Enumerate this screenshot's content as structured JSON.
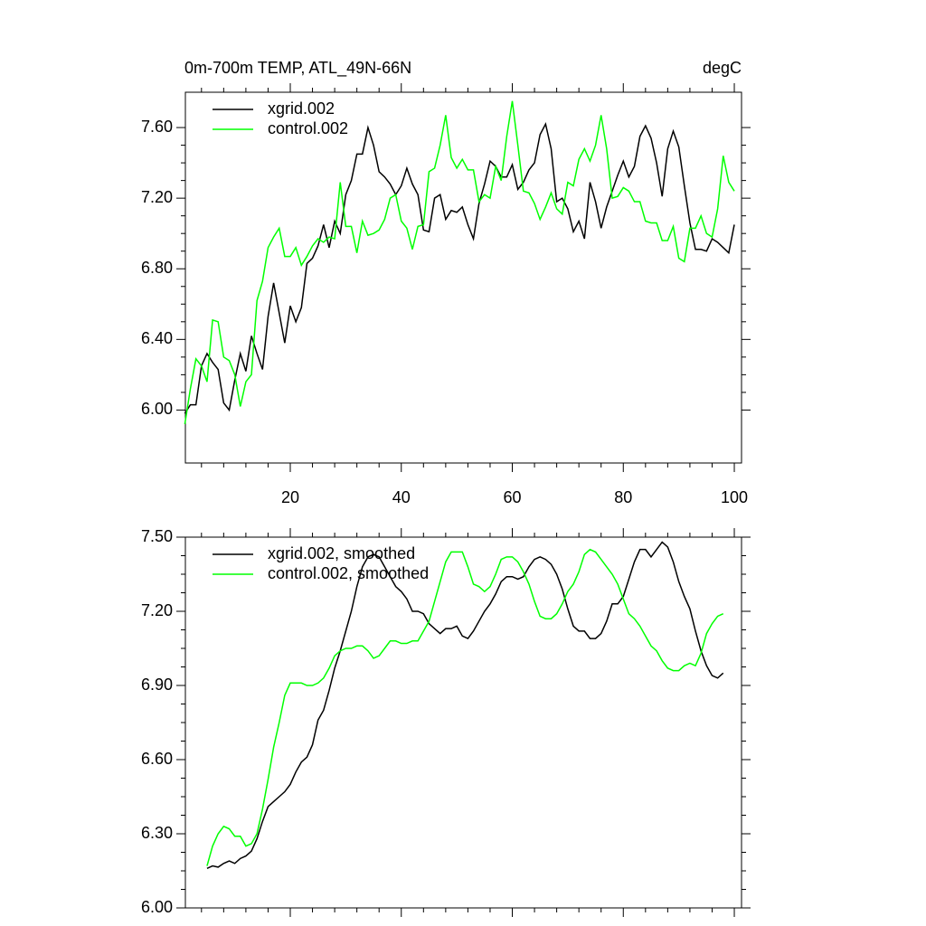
{
  "chart_data": [
    {
      "type": "line",
      "title": "0m-700m TEMP, ATL_49N-66N",
      "units_label": "degC",
      "xlim": [
        1.1,
        101.3
      ],
      "ylim": [
        5.7,
        7.8
      ],
      "xticks": [
        20,
        40,
        60,
        80,
        100
      ],
      "yticks": [
        {
          "value": 6.0,
          "label": "6.00"
        },
        {
          "value": 6.4,
          "label": "6.40"
        },
        {
          "value": 6.8,
          "label": "6.80"
        },
        {
          "value": 7.2,
          "label": "7.20"
        },
        {
          "value": 7.6,
          "label": "7.60"
        }
      ],
      "x": [
        1,
        2,
        3,
        4,
        5,
        6,
        7,
        8,
        9,
        10,
        11,
        12,
        13,
        14,
        15,
        16,
        17,
        18,
        19,
        20,
        21,
        22,
        23,
        24,
        25,
        26,
        27,
        28,
        29,
        30,
        31,
        32,
        33,
        34,
        35,
        36,
        37,
        38,
        39,
        40,
        41,
        42,
        43,
        44,
        45,
        46,
        47,
        48,
        49,
        50,
        51,
        52,
        53,
        54,
        55,
        56,
        57,
        58,
        59,
        60,
        61,
        62,
        63,
        64,
        65,
        66,
        67,
        68,
        69,
        70,
        71,
        72,
        73,
        74,
        75,
        76,
        77,
        78,
        79,
        80,
        81,
        82,
        83,
        84,
        85,
        86,
        87,
        88,
        89,
        90,
        91,
        92,
        93,
        94,
        95,
        96,
        97,
        98,
        99,
        100
      ],
      "series": [
        {
          "name": "xgrid.002",
          "color": "#000000",
          "values": [
            5.98,
            6.03,
            6.03,
            6.25,
            6.32,
            6.27,
            6.23,
            6.04,
            6.0,
            6.17,
            6.32,
            6.22,
            6.42,
            6.32,
            6.23,
            6.53,
            6.72,
            6.55,
            6.38,
            6.59,
            6.5,
            6.58,
            6.83,
            6.86,
            6.93,
            7.05,
            6.92,
            7.07,
            7.0,
            7.22,
            7.3,
            7.45,
            7.45,
            7.6,
            7.5,
            7.35,
            7.32,
            7.28,
            7.22,
            7.27,
            7.37,
            7.28,
            7.22,
            7.02,
            7.01,
            7.2,
            7.22,
            7.08,
            7.13,
            7.12,
            7.15,
            7.05,
            6.97,
            7.17,
            7.28,
            7.41,
            7.38,
            7.32,
            7.32,
            7.39,
            7.25,
            7.29,
            7.36,
            7.4,
            7.56,
            7.62,
            7.48,
            7.18,
            7.2,
            7.14,
            7.01,
            7.07,
            6.97,
            7.29,
            7.18,
            7.03,
            7.15,
            7.24,
            7.33,
            7.41,
            7.32,
            7.38,
            7.55,
            7.61,
            7.54,
            7.4,
            7.21,
            7.48,
            7.58,
            7.49,
            7.27,
            7.06,
            6.91,
            6.91,
            6.9,
            6.97,
            6.95,
            6.92,
            6.89,
            7.05
          ]
        },
        {
          "name": "control.002",
          "color": "#00ff00",
          "values": [
            5.92,
            6.12,
            6.29,
            6.25,
            6.16,
            6.51,
            6.5,
            6.3,
            6.28,
            6.2,
            6.02,
            6.16,
            6.2,
            6.62,
            6.73,
            6.92,
            6.98,
            7.03,
            6.87,
            6.87,
            6.92,
            6.82,
            6.87,
            6.93,
            6.97,
            6.95,
            6.98,
            6.97,
            7.29,
            7.04,
            7.04,
            6.89,
            7.07,
            6.99,
            7.0,
            7.02,
            7.08,
            7.2,
            7.22,
            7.07,
            7.03,
            6.91,
            7.04,
            7.05,
            7.35,
            7.37,
            7.5,
            7.67,
            7.43,
            7.37,
            7.42,
            7.36,
            7.36,
            7.18,
            7.22,
            7.2,
            7.38,
            7.3,
            7.55,
            7.75,
            7.5,
            7.24,
            7.23,
            7.17,
            7.08,
            7.15,
            7.23,
            7.14,
            7.11,
            7.29,
            7.27,
            7.42,
            7.48,
            7.41,
            7.5,
            7.67,
            7.48,
            7.2,
            7.21,
            7.26,
            7.24,
            7.18,
            7.18,
            7.07,
            7.06,
            7.06,
            6.96,
            6.96,
            7.04,
            6.86,
            6.84,
            7.03,
            7.03,
            7.1,
            7.0,
            6.98,
            7.14,
            7.44,
            7.29,
            7.24
          ]
        }
      ]
    },
    {
      "type": "line",
      "xlim": [
        1.1,
        101.3
      ],
      "ylim": [
        6.0,
        7.5
      ],
      "yticks": [
        {
          "value": 6.0,
          "label": "6.00"
        },
        {
          "value": 6.3,
          "label": "6.30"
        },
        {
          "value": 6.6,
          "label": "6.60"
        },
        {
          "value": 6.9,
          "label": "6.90"
        },
        {
          "value": 7.2,
          "label": "7.20"
        },
        {
          "value": 7.5,
          "label": "7.50"
        }
      ],
      "x": [
        5,
        6,
        7,
        8,
        9,
        10,
        11,
        12,
        13,
        14,
        15,
        16,
        17,
        18,
        19,
        20,
        21,
        22,
        23,
        24,
        25,
        26,
        27,
        28,
        29,
        30,
        31,
        32,
        33,
        34,
        35,
        36,
        37,
        38,
        39,
        40,
        41,
        42,
        43,
        44,
        45,
        46,
        47,
        48,
        49,
        50,
        51,
        52,
        53,
        54,
        55,
        56,
        57,
        58,
        59,
        60,
        61,
        62,
        63,
        64,
        65,
        66,
        67,
        68,
        69,
        70,
        71,
        72,
        73,
        74,
        75,
        76,
        77,
        78,
        79,
        80,
        81,
        82,
        83,
        84,
        85,
        86,
        87,
        88,
        89,
        90,
        91,
        92,
        93,
        94,
        95,
        96,
        97,
        98
      ],
      "series": [
        {
          "name": "xgrid.002, smoothed",
          "color": "#000000",
          "values": [
            6.16,
            6.17,
            6.165,
            6.18,
            6.19,
            6.18,
            6.2,
            6.21,
            6.23,
            6.28,
            6.35,
            6.41,
            6.43,
            6.45,
            6.47,
            6.5,
            6.55,
            6.59,
            6.61,
            6.66,
            6.76,
            6.8,
            6.88,
            6.97,
            7.04,
            7.12,
            7.2,
            7.3,
            7.38,
            7.42,
            7.43,
            7.42,
            7.38,
            7.34,
            7.3,
            7.28,
            7.25,
            7.2,
            7.2,
            7.19,
            7.15,
            7.13,
            7.11,
            7.13,
            7.13,
            7.14,
            7.1,
            7.09,
            7.12,
            7.16,
            7.2,
            7.23,
            7.27,
            7.32,
            7.34,
            7.34,
            7.33,
            7.34,
            7.38,
            7.41,
            7.42,
            7.41,
            7.39,
            7.35,
            7.29,
            7.21,
            7.14,
            7.12,
            7.12,
            7.09,
            7.09,
            7.11,
            7.16,
            7.23,
            7.23,
            7.26,
            7.33,
            7.4,
            7.45,
            7.45,
            7.42,
            7.45,
            7.48,
            7.46,
            7.4,
            7.32,
            7.26,
            7.21,
            7.12,
            7.04,
            6.98,
            6.94,
            6.93,
            6.95
          ]
        },
        {
          "name": "control.002, smoothed",
          "color": "#00ff00",
          "values": [
            6.17,
            6.25,
            6.3,
            6.33,
            6.32,
            6.29,
            6.29,
            6.25,
            6.26,
            6.3,
            6.4,
            6.52,
            6.65,
            6.75,
            6.86,
            6.91,
            6.91,
            6.91,
            6.9,
            6.9,
            6.91,
            6.93,
            6.97,
            7.02,
            7.04,
            7.05,
            7.05,
            7.06,
            7.06,
            7.04,
            7.01,
            7.02,
            7.05,
            7.08,
            7.08,
            7.07,
            7.07,
            7.08,
            7.08,
            7.12,
            7.16,
            7.24,
            7.32,
            7.4,
            7.44,
            7.44,
            7.44,
            7.38,
            7.31,
            7.3,
            7.28,
            7.3,
            7.35,
            7.41,
            7.42,
            7.42,
            7.4,
            7.36,
            7.31,
            7.24,
            7.18,
            7.17,
            7.17,
            7.19,
            7.23,
            7.28,
            7.31,
            7.36,
            7.43,
            7.45,
            7.44,
            7.41,
            7.38,
            7.35,
            7.31,
            7.25,
            7.19,
            7.17,
            7.14,
            7.1,
            7.06,
            7.04,
            7.0,
            6.97,
            6.96,
            6.96,
            6.98,
            6.99,
            6.98,
            7.03,
            7.11,
            7.15,
            7.18,
            7.19
          ]
        }
      ]
    }
  ]
}
